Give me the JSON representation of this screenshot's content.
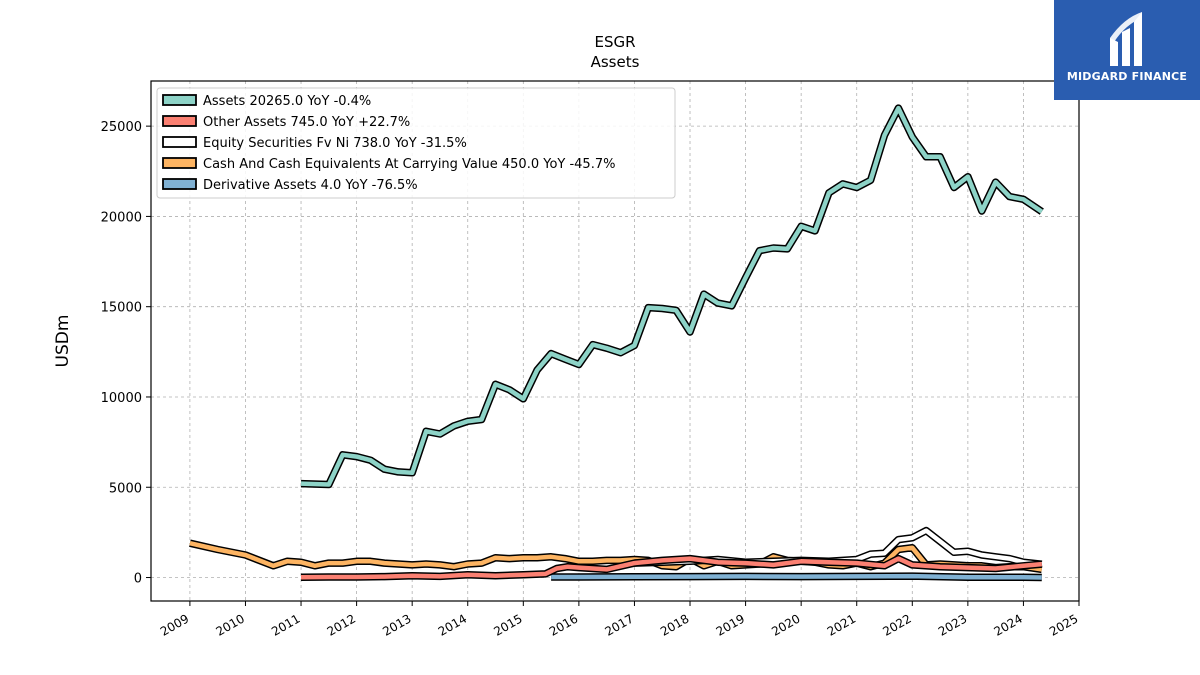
{
  "chart_data": {
    "type": "line",
    "title": "ESGR",
    "subtitle": "Assets",
    "ylabel": "USDm",
    "xlim": [
      2008.3,
      2025.0
    ],
    "ylim": [
      -1300,
      27500
    ],
    "yticks": [
      0,
      5000,
      10000,
      15000,
      20000,
      25000
    ],
    "xticks": [
      "2009",
      "2010",
      "2011",
      "2012",
      "2013",
      "2014",
      "2015",
      "2016",
      "2017",
      "2018",
      "2019",
      "2020",
      "2021",
      "2022",
      "2023",
      "2024",
      "2025"
    ],
    "grid": true,
    "legend_position": "top-left",
    "series": [
      {
        "name": "Assets  20265.0 YoY -0.4%",
        "color": "#8dd3c7",
        "x": [
          2011.0,
          2011.5,
          2011.75,
          2012.0,
          2012.25,
          2012.5,
          2012.75,
          2013.0,
          2013.25,
          2013.5,
          2013.75,
          2014.0,
          2014.25,
          2014.5,
          2014.75,
          2015.0,
          2015.25,
          2015.5,
          2015.75,
          2016.0,
          2016.25,
          2016.5,
          2016.75,
          2017.0,
          2017.25,
          2017.5,
          2017.75,
          2018.0,
          2018.25,
          2018.5,
          2018.75,
          2019.0,
          2019.25,
          2019.5,
          2019.75,
          2020.0,
          2020.25,
          2020.5,
          2020.75,
          2021.0,
          2021.25,
          2021.5,
          2021.75,
          2022.0,
          2022.25,
          2022.5,
          2022.75,
          2023.0,
          2023.25,
          2023.5,
          2023.75,
          2024.0,
          2024.33
        ],
        "y": [
          5200,
          5150,
          6800,
          6700,
          6500,
          6000,
          5850,
          5800,
          8100,
          7950,
          8400,
          8650,
          8750,
          10700,
          10400,
          9900,
          11500,
          12400,
          12100,
          11800,
          12900,
          12700,
          12450,
          12850,
          14950,
          14900,
          14800,
          13600,
          15700,
          15200,
          15050,
          16600,
          18100,
          18250,
          18200,
          19450,
          19200,
          21300,
          21800,
          21600,
          22000,
          24500,
          26000,
          24400,
          23300,
          23300,
          21600,
          22200,
          20300,
          21900,
          21100,
          20950,
          20265
        ]
      },
      {
        "name": "Other Assets  745.0 YoY +22.7%",
        "color": "#fb8072",
        "x": [
          2011.0,
          2011.5,
          2012.0,
          2012.5,
          2013.0,
          2013.5,
          2014.0,
          2014.5,
          2015.0,
          2015.4,
          2015.6,
          2015.8,
          2016.0,
          2016.5,
          2017.0,
          2017.5,
          2018.0,
          2018.5,
          2019.0,
          2019.5,
          2020.0,
          2020.5,
          2021.0,
          2021.5,
          2021.75,
          2022.0,
          2022.5,
          2023.0,
          2023.5,
          2024.0,
          2024.33
        ],
        "y": [
          20,
          30,
          30,
          50,
          100,
          60,
          150,
          100,
          150,
          200,
          500,
          600,
          550,
          450,
          800,
          950,
          1050,
          850,
          800,
          700,
          900,
          850,
          800,
          650,
          1050,
          700,
          600,
          550,
          500,
          650,
          745
        ]
      },
      {
        "name": "Equity Securities Fv Ni  738.0 YoY -31.5%",
        "color": "#ffffff",
        "x": [
          2017.0,
          2017.5,
          2018.0,
          2018.5,
          2019.0,
          2019.5,
          2020.0,
          2020.5,
          2021.0,
          2021.25,
          2021.5,
          2021.75,
          2022.0,
          2022.25,
          2022.5,
          2022.75,
          2023.0,
          2023.25,
          2023.5,
          2023.75,
          2024.0,
          2024.33
        ],
        "y": [
          800,
          850,
          900,
          1000,
          850,
          900,
          950,
          900,
          1000,
          1300,
          1350,
          2100,
          2200,
          2600,
          2000,
          1400,
          1450,
          1250,
          1150,
          1050,
          850,
          738
        ]
      },
      {
        "name": "Cash And Cash Equivalents At Carrying Value  450.0 YoY -45.7%",
        "color": "#fdb462",
        "x": [
          2009.0,
          2009.5,
          2010.0,
          2010.5,
          2010.75,
          2011.0,
          2011.25,
          2011.5,
          2011.75,
          2012.0,
          2012.25,
          2012.5,
          2012.75,
          2013.0,
          2013.25,
          2013.5,
          2013.75,
          2014.0,
          2014.25,
          2014.5,
          2014.75,
          2015.0,
          2015.25,
          2015.5,
          2015.75,
          2016.0,
          2016.25,
          2016.5,
          2016.75,
          2017.0,
          2017.25,
          2017.5,
          2017.75,
          2018.0,
          2018.25,
          2018.5,
          2018.75,
          2019.0,
          2019.25,
          2019.5,
          2019.75,
          2020.0,
          2020.25,
          2020.5,
          2020.75,
          2021.0,
          2021.25,
          2021.5,
          2021.75,
          2022.0,
          2022.25,
          2022.5,
          2022.75,
          2023.0,
          2023.25,
          2023.5,
          2023.75,
          2024.0,
          2024.33
        ],
        "y": [
          1900,
          1550,
          1250,
          650,
          900,
          850,
          650,
          800,
          800,
          900,
          900,
          800,
          750,
          700,
          750,
          700,
          600,
          750,
          800,
          1100,
          1050,
          1100,
          1100,
          1150,
          1050,
          900,
          900,
          950,
          950,
          1000,
          950,
          650,
          600,
          1050,
          650,
          900,
          650,
          700,
          750,
          1150,
          950,
          900,
          850,
          700,
          650,
          800,
          600,
          800,
          1550,
          1650,
          700,
          750,
          700,
          650,
          650,
          550,
          600,
          600,
          450
        ]
      },
      {
        "name": "Derivative Assets  4.0 YoY -76.5%",
        "color": "#80b1d3",
        "x": [
          2015.5,
          2016.0,
          2017.0,
          2018.0,
          2019.0,
          2020.0,
          2021.0,
          2022.0,
          2023.0,
          2024.0,
          2024.33
        ],
        "y": [
          30,
          30,
          40,
          50,
          60,
          50,
          60,
          80,
          20,
          10,
          4
        ]
      }
    ]
  },
  "logo": {
    "text": "MIDGARD FINANCE",
    "color": "#2a5db0"
  }
}
